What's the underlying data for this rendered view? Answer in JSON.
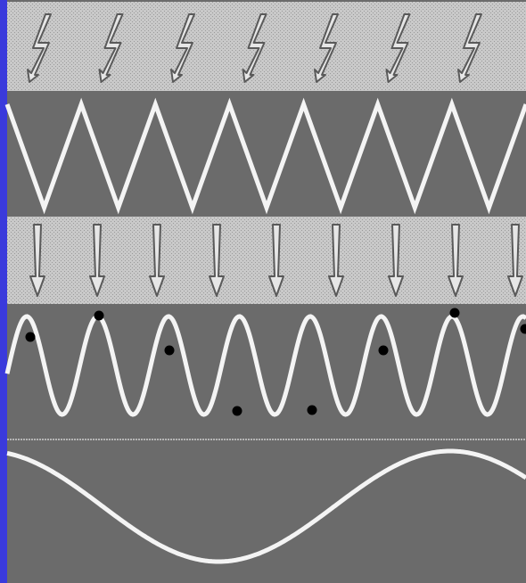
{
  "colors": {
    "frame": "#3a3adc",
    "panel": "#6b6b6b",
    "stipple_bg": "#c9c9c9",
    "stipple_dot": "#9a9a9a",
    "line": "#f4f4f4",
    "icon_fill": "#e6e6e6",
    "icon_stroke": "#5a5a5a",
    "point": "#000000"
  },
  "bands": [
    {
      "name": "lightning-band",
      "icon": "lightning-bolt-icon",
      "count": 7,
      "style": "stippled"
    },
    {
      "name": "triangle-wave-band",
      "wave": "triangle",
      "cycles": 7,
      "style": "dark"
    },
    {
      "name": "arrow-band",
      "icon": "down-arrow-icon",
      "count": 9,
      "style": "stippled"
    },
    {
      "name": "sampled-wave-band",
      "wave": "high-frequency",
      "cycles": 7.4,
      "style": "dark",
      "sample_points": 9
    },
    {
      "name": "alias-wave-band",
      "wave": "low-frequency-sine",
      "cycles": 1,
      "style": "dark"
    }
  ]
}
